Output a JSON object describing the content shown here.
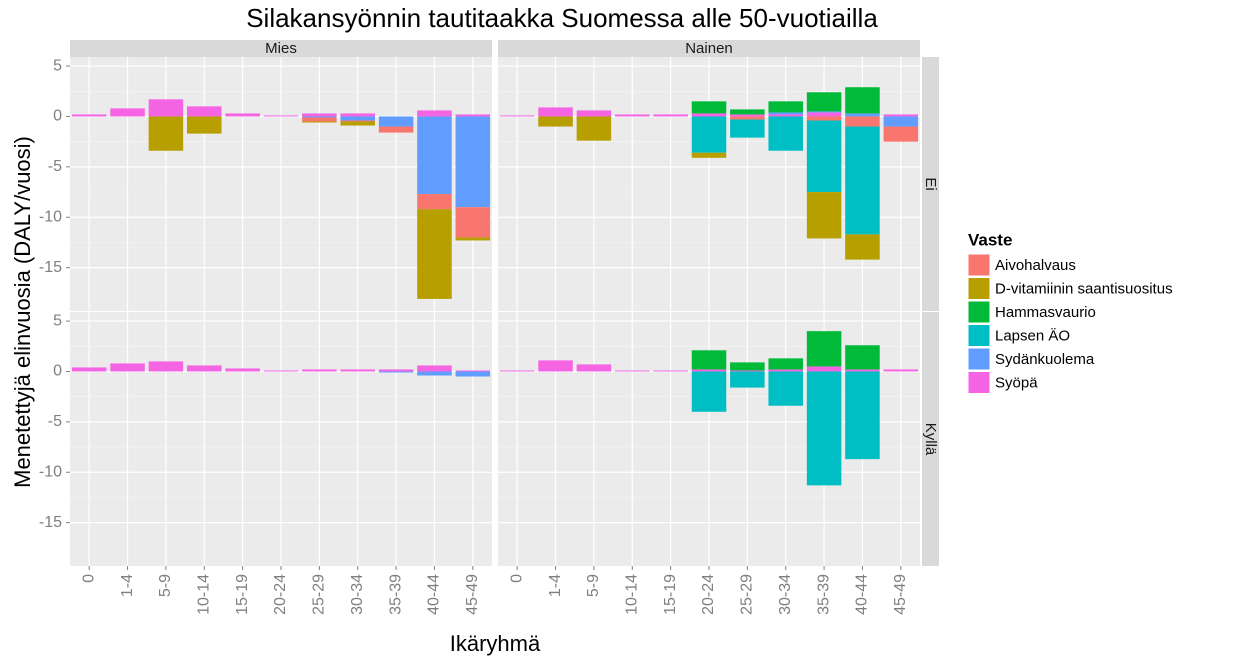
{
  "chart_data": {
    "type": "bar",
    "stacked": true,
    "title": "Silakansyönnin tautitaakka Suomessa alle 50-vuotiailla",
    "x_label": "Ikäryhmä",
    "y_label": "Menetettyjä elinvuosia (DALY/vuosi)",
    "legend_title": "Vaste",
    "columns": [
      "Mies",
      "Nainen"
    ],
    "rows": [
      "Ei",
      "Kyllä"
    ],
    "categories": [
      "0",
      "1-4",
      "5-9",
      "10-14",
      "15-19",
      "20-24",
      "25-29",
      "30-34",
      "35-39",
      "40-44",
      "45-49"
    ],
    "ylim": [
      -19.3,
      5.9
    ],
    "yticks": [
      -15,
      -10,
      -5,
      0,
      5
    ],
    "grid": true,
    "series": [
      {
        "name": "Aivohalvaus",
        "color": "#F8766D"
      },
      {
        "name": "D-vitamiinin saantisuositus",
        "color": "#B79F00"
      },
      {
        "name": "Hammasvaurio",
        "color": "#00BA38"
      },
      {
        "name": "Lapsen ÄO",
        "color": "#00BFC4"
      },
      {
        "name": "Sydänkuolema",
        "color": "#619CFF"
      },
      {
        "name": "Syöpä",
        "color": "#F564E3"
      }
    ],
    "panels": [
      {
        "series": [
          {
            "values": [
              0,
              0,
              0,
              0,
              0,
              0,
              -0.4,
              -0.1,
              -0.6,
              -1.5,
              -3.0
            ]
          },
          {
            "values": [
              0,
              0,
              -3.4,
              -1.7,
              0,
              0,
              -0.1,
              -0.4,
              0,
              -8.9,
              -0.3
            ]
          },
          {
            "values": [
              0,
              0,
              0,
              0,
              0,
              0,
              0,
              0,
              0,
              0,
              0
            ]
          },
          {
            "values": [
              0,
              0,
              0,
              0,
              0,
              0,
              0,
              0,
              0,
              0,
              0
            ]
          },
          {
            "values": [
              0,
              0,
              0,
              0,
              0,
              0,
              -0.1,
              -0.4,
              -1.0,
              -7.7,
              -9.0
            ]
          },
          {
            "values": [
              0.2,
              0.8,
              1.7,
              1.0,
              0.3,
              0.1,
              0.3,
              0.3,
              0,
              0.6,
              0.2
            ]
          }
        ]
      },
      {
        "series": [
          {
            "values": [
              0,
              0,
              0,
              0,
              0,
              0,
              -0.3,
              0,
              -0.4,
              -1.0,
              -1.5
            ]
          },
          {
            "values": [
              0,
              -1.0,
              -2.4,
              0,
              0,
              -0.5,
              0,
              0,
              -4.6,
              -2.5,
              0
            ]
          },
          {
            "values": [
              0,
              0,
              0,
              0,
              0,
              1.2,
              0.5,
              1.1,
              1.9,
              2.6,
              0
            ]
          },
          {
            "values": [
              0,
              0,
              0,
              0,
              0,
              -3.6,
              -1.8,
              -3.4,
              -7.1,
              -10.7,
              0
            ]
          },
          {
            "values": [
              0,
              0,
              0,
              0,
              0,
              0,
              0,
              0.2,
              0.1,
              0.3,
              -1.0
            ]
          },
          {
            "values": [
              0.1,
              0.9,
              0.6,
              0.2,
              0.2,
              0.3,
              0.2,
              0.2,
              0.4,
              0,
              0.2
            ]
          }
        ]
      },
      {
        "series": [
          {
            "values": [
              0,
              0,
              0,
              0,
              0,
              0,
              0,
              0,
              0,
              0,
              0
            ]
          },
          {
            "values": [
              0,
              0,
              0,
              0,
              0,
              0,
              0,
              0,
              0,
              0,
              0
            ]
          },
          {
            "values": [
              0,
              0,
              0,
              0,
              0,
              0,
              0,
              0,
              0,
              0,
              0
            ]
          },
          {
            "values": [
              0,
              0,
              0,
              0,
              0,
              0,
              0,
              0,
              0,
              0,
              0
            ]
          },
          {
            "values": [
              0,
              0,
              0,
              0,
              0,
              0,
              0,
              0,
              -0.1,
              -0.4,
              -0.5
            ]
          },
          {
            "values": [
              0.4,
              0.8,
              1.0,
              0.6,
              0.3,
              0.1,
              0.2,
              0.2,
              0.2,
              0.6,
              0.1
            ]
          }
        ]
      },
      {
        "series": [
          {
            "values": [
              0,
              0,
              0,
              0,
              0,
              0,
              0,
              0,
              0,
              0,
              0
            ]
          },
          {
            "values": [
              0,
              0,
              0,
              0,
              0,
              0,
              0,
              0,
              0,
              0,
              0
            ]
          },
          {
            "values": [
              0,
              0,
              0,
              0,
              0,
              1.9,
              0.8,
              1.1,
              3.5,
              2.4,
              0
            ]
          },
          {
            "values": [
              0,
              0,
              0,
              0,
              0,
              -4.0,
              -1.6,
              -3.4,
              -11.3,
              -8.7,
              0
            ]
          },
          {
            "values": [
              0,
              0,
              0,
              0,
              0,
              0,
              0,
              0,
              0,
              0,
              0
            ]
          },
          {
            "values": [
              0.1,
              1.1,
              0.7,
              0.1,
              0.1,
              0.2,
              0.1,
              0.2,
              0.5,
              0.2,
              0.2
            ]
          }
        ]
      }
    ]
  }
}
